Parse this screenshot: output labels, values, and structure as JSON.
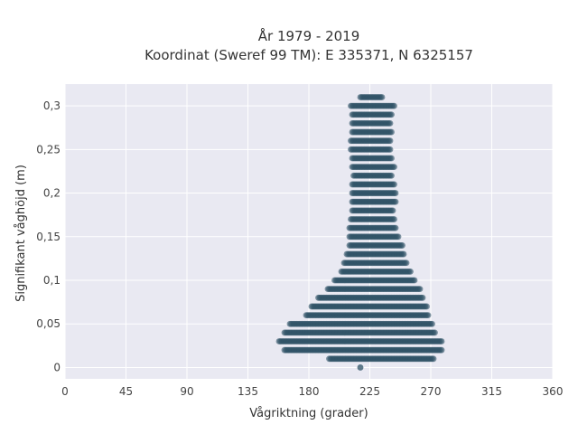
{
  "title": {
    "line1": "År 1979 - 2019",
    "line2": "Koordinat (Sweref 99 TM): E 335371, N 6325157"
  },
  "colors": {
    "background": "#ffffff",
    "plot_background": "#e9e9f2",
    "grid": "#ffffff",
    "marker": "#2e5266"
  },
  "chart_data": {
    "type": "scatter",
    "title": "År 1979 - 2019 / Koordinat (Sweref 99 TM): E 335371, N 6325157",
    "xlabel": "Vågriktning (grader)",
    "ylabel": "Signifikant våghöjd (m)",
    "xlim": [
      0,
      360
    ],
    "ylim": [
      -0.013,
      0.325
    ],
    "grid": true,
    "x_ticks": [
      0,
      45,
      90,
      135,
      180,
      225,
      270,
      315,
      360
    ],
    "x_tick_labels": [
      "0",
      "45",
      "90",
      "135",
      "180",
      "225",
      "270",
      "315",
      "360"
    ],
    "y_ticks": [
      0,
      0.05,
      0.1,
      0.15,
      0.2,
      0.25,
      0.3
    ],
    "y_tick_labels": [
      "0",
      "0,05",
      "0,1",
      "0,15",
      "0,2",
      "0,25",
      "0,3"
    ],
    "marker_color": "#2e5266",
    "bands": [
      {
        "y": 0.0,
        "x_min": 218,
        "x_max": 218
      },
      {
        "y": 0.01,
        "x_min": 195,
        "x_max": 272
      },
      {
        "y": 0.02,
        "x_min": 162,
        "x_max": 278
      },
      {
        "y": 0.03,
        "x_min": 158,
        "x_max": 278
      },
      {
        "y": 0.04,
        "x_min": 162,
        "x_max": 273
      },
      {
        "y": 0.05,
        "x_min": 166,
        "x_max": 271
      },
      {
        "y": 0.06,
        "x_min": 178,
        "x_max": 268
      },
      {
        "y": 0.07,
        "x_min": 182,
        "x_max": 267
      },
      {
        "y": 0.08,
        "x_min": 187,
        "x_max": 264
      },
      {
        "y": 0.09,
        "x_min": 194,
        "x_max": 262
      },
      {
        "y": 0.1,
        "x_min": 199,
        "x_max": 258
      },
      {
        "y": 0.11,
        "x_min": 204,
        "x_max": 255
      },
      {
        "y": 0.12,
        "x_min": 206,
        "x_max": 252
      },
      {
        "y": 0.13,
        "x_min": 208,
        "x_max": 250
      },
      {
        "y": 0.14,
        "x_min": 210,
        "x_max": 249
      },
      {
        "y": 0.15,
        "x_min": 210,
        "x_max": 246
      },
      {
        "y": 0.16,
        "x_min": 210,
        "x_max": 244
      },
      {
        "y": 0.17,
        "x_min": 211,
        "x_max": 243
      },
      {
        "y": 0.18,
        "x_min": 212,
        "x_max": 242
      },
      {
        "y": 0.19,
        "x_min": 212,
        "x_max": 244
      },
      {
        "y": 0.2,
        "x_min": 212,
        "x_max": 244
      },
      {
        "y": 0.21,
        "x_min": 212,
        "x_max": 243
      },
      {
        "y": 0.22,
        "x_min": 213,
        "x_max": 241
      },
      {
        "y": 0.23,
        "x_min": 212,
        "x_max": 243
      },
      {
        "y": 0.24,
        "x_min": 212,
        "x_max": 241
      },
      {
        "y": 0.25,
        "x_min": 211,
        "x_max": 240
      },
      {
        "y": 0.26,
        "x_min": 211,
        "x_max": 240
      },
      {
        "y": 0.27,
        "x_min": 212,
        "x_max": 241
      },
      {
        "y": 0.28,
        "x_min": 212,
        "x_max": 240
      },
      {
        "y": 0.29,
        "x_min": 212,
        "x_max": 241
      },
      {
        "y": 0.3,
        "x_min": 211,
        "x_max": 243
      },
      {
        "y": 0.31,
        "x_min": 218,
        "x_max": 234
      }
    ]
  }
}
